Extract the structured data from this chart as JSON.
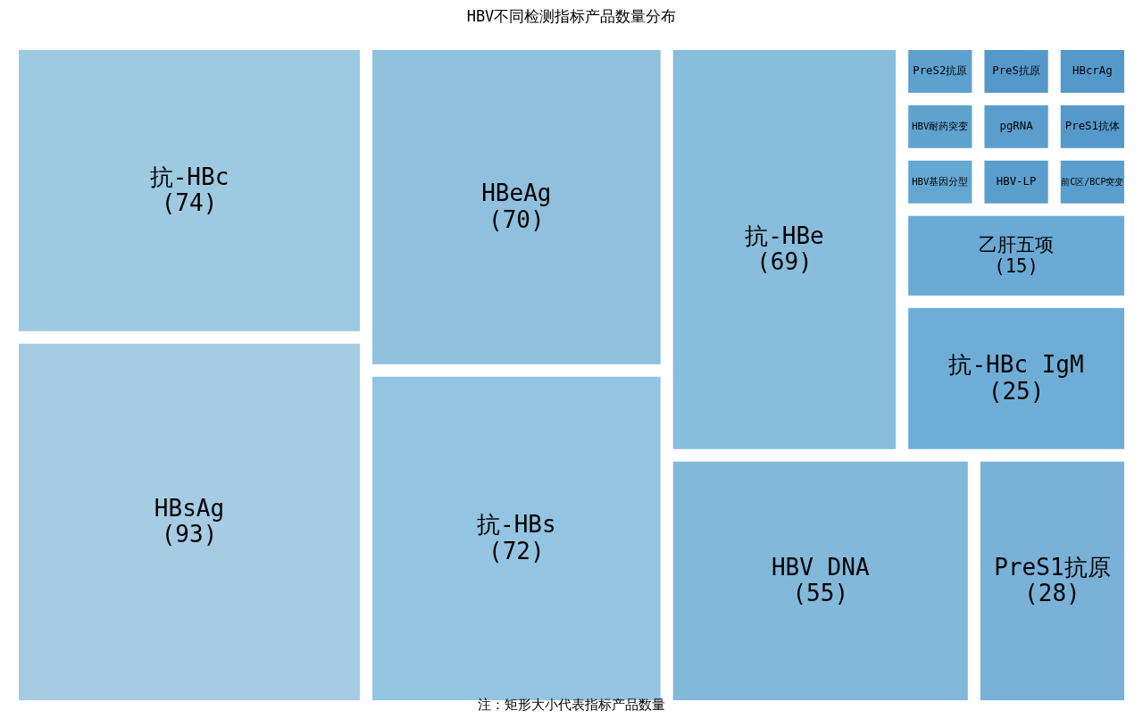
{
  "chart_data": {
    "type": "other",
    "title": "HBV不同检测指标产品数量分布",
    "categories": [
      "HBsAg",
      "抗-HBc",
      "抗-HBs",
      "HBeAg",
      "HBV DNA",
      "PreS1抗原",
      "抗-HBe",
      "抗-HBc IgM",
      "乙肝五项",
      "HBV基因分型",
      "HBV耐药突变",
      "PreS2抗原",
      "HBV-LP",
      "前C区/BCP突变",
      "pgRNA",
      "PreS抗原",
      "PreS1抗体",
      "HBcrAg"
    ],
    "values": [
      93,
      74,
      72,
      70,
      55,
      28,
      69,
      25,
      15,
      null,
      null,
      null,
      null,
      null,
      null,
      null,
      null,
      null
    ],
    "value_labels": [
      "(93)",
      "(74)",
      "(72)",
      "(70)",
      "(55)",
      "(28)",
      "(69)",
      "(25)",
      "(15)",
      null,
      null,
      null,
      null,
      null,
      null,
      null,
      null,
      null
    ],
    "colors": [
      "#a5cce3",
      "#9ecae1",
      "#93c4e1",
      "#8fc0de",
      "#82b8da",
      "#7ab2d7",
      "#89bddc",
      "#6eaed6",
      "#6aaad4",
      "#65a7d3",
      "#5fa2cf",
      "#5ea1cf",
      "#5a9ecd",
      "#5a9ecd",
      "#5a9ecd",
      "#5599cb",
      "#5599cb",
      "#5599cb"
    ],
    "annotations": [
      "注：矩形大小代表指标产品数量"
    ]
  }
}
